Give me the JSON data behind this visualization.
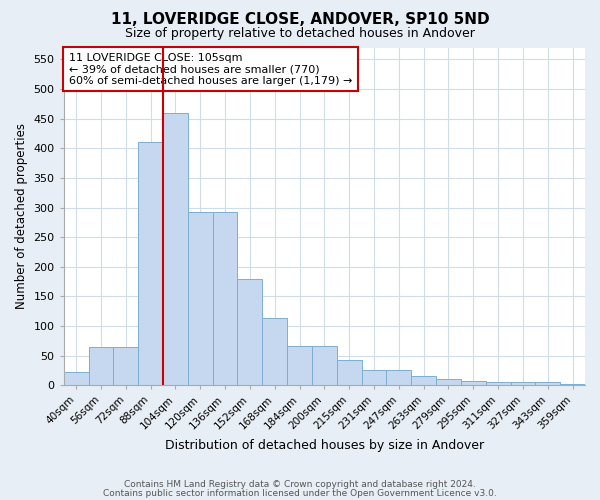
{
  "title": "11, LOVERIDGE CLOSE, ANDOVER, SP10 5ND",
  "subtitle": "Size of property relative to detached houses in Andover",
  "xlabel": "Distribution of detached houses by size in Andover",
  "ylabel": "Number of detached properties",
  "footer1": "Contains HM Land Registry data © Crown copyright and database right 2024.",
  "footer2": "Contains public sector information licensed under the Open Government Licence v3.0.",
  "categories": [
    "40sqm",
    "56sqm",
    "72sqm",
    "88sqm",
    "104sqm",
    "120sqm",
    "136sqm",
    "152sqm",
    "168sqm",
    "184sqm",
    "200sqm",
    "215sqm",
    "231sqm",
    "247sqm",
    "263sqm",
    "279sqm",
    "295sqm",
    "311sqm",
    "327sqm",
    "343sqm",
    "359sqm"
  ],
  "values": [
    22,
    65,
    65,
    410,
    460,
    293,
    293,
    180,
    113,
    67,
    67,
    43,
    25,
    25,
    15,
    10,
    7,
    5,
    5,
    5,
    3
  ],
  "bar_color": "#c5d8ef",
  "bar_edge_color": "#7bafd4",
  "vline_color": "#cc0000",
  "vline_pos": 4,
  "annotation_title": "11 LOVERIDGE CLOSE: 105sqm",
  "annotation_line1": "← 39% of detached houses are smaller (770)",
  "annotation_line2": "60% of semi-detached houses are larger (1,179) →",
  "annotation_box_color": "#cc0000",
  "plot_bg_color": "#ffffff",
  "fig_bg_color": "#e8eef5",
  "ylim": [
    0,
    570
  ],
  "yticks": [
    0,
    50,
    100,
    150,
    200,
    250,
    300,
    350,
    400,
    450,
    500,
    550
  ]
}
